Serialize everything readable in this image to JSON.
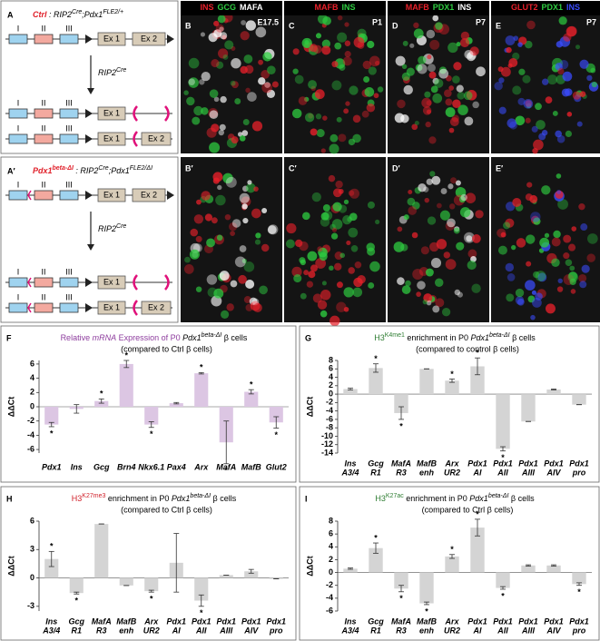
{
  "panels": {
    "A": {
      "letter": "A",
      "genotype_parts": [
        "Ctrl",
        " : RIP2",
        "Cre",
        ";Pdx1",
        "FLE2/+"
      ]
    },
    "A_prime": {
      "letter": "A′",
      "genotype_parts": [
        "Pdx1",
        "beta-ΔI",
        " : RIP2",
        "Cre",
        ";Pdx1",
        "FLE2/ΔI"
      ]
    },
    "cre_parts": [
      "RIP2",
      "Cre"
    ],
    "gene": {
      "regions": [
        "I",
        "II",
        "III"
      ],
      "exons": [
        "Ex 1",
        "Ex 2"
      ]
    },
    "images": [
      {
        "letter": "B",
        "age": "E17.5",
        "stain": [
          {
            "text": "INS",
            "color": "#e8202a"
          },
          {
            "text": "GCG",
            "color": "#2ecc40"
          },
          {
            "text": "MAFA",
            "color": "#ffffff"
          }
        ]
      },
      {
        "letter": "C",
        "age": "P1",
        "stain": [
          {
            "text": "MAFB",
            "color": "#e8202a"
          },
          {
            "text": "INS",
            "color": "#2ecc40"
          }
        ]
      },
      {
        "letter": "D",
        "age": "P7",
        "stain": [
          {
            "text": "MAFB",
            "color": "#e8202a"
          },
          {
            "text": "PDX1",
            "color": "#2ecc40"
          },
          {
            "text": "INS",
            "color": "#ffffff"
          }
        ]
      },
      {
        "letter": "E",
        "age": "P7",
        "stain": [
          {
            "text": "GLUT2",
            "color": "#e8202a"
          },
          {
            "text": "PDX1",
            "color": "#2ecc40"
          },
          {
            "text": "INS",
            "color": "#3a4cff"
          }
        ]
      },
      {
        "letter": "B′"
      },
      {
        "letter": "C′"
      },
      {
        "letter": "D′"
      },
      {
        "letter": "E′"
      }
    ]
  },
  "chart_data": [
    {
      "type": "bar",
      "panel_label": "F",
      "title_parts": [
        "Relative ",
        "mRNA",
        " Expression",
        " of P0 ",
        "Pdx1",
        "beta-ΔI",
        " β cells"
      ],
      "title_color": "#8e3d9e",
      "subtitle": "(compared to Ctrl β cells)",
      "ylabel": "ΔΔCt",
      "color": "#dcc6e3",
      "categories": [
        "Pdx1",
        "Ins",
        "Gcg",
        "Brn4",
        "Nkx6.1",
        "Pax4",
        "Arx",
        "MafA",
        "MafB",
        "Glut2"
      ],
      "values": [
        -2.5,
        -0.3,
        0.8,
        6,
        -2.5,
        0.5,
        4.7,
        -5,
        2.1,
        -2.2
      ],
      "errors": [
        0.3,
        0.6,
        0.3,
        0.5,
        0.4,
        0.1,
        0.1,
        3,
        0.3,
        0.8
      ],
      "significance": [
        "*",
        null,
        "*",
        "*",
        "*",
        null,
        "*",
        "*",
        "*",
        "*"
      ],
      "ylim": [
        -6.5,
        6.5
      ],
      "yticks": [
        -6,
        -4,
        -2,
        0,
        2,
        4,
        6
      ]
    },
    {
      "type": "bar",
      "panel_label": "G",
      "title_parts": [
        "H3",
        "K4me1",
        " enrichment in P0 ",
        "Pdx1",
        "beta-ΔI",
        " β cells"
      ],
      "title_color": "#2e7d32",
      "subtitle": "(compared to control β cells)",
      "ylabel": "ΔΔCt",
      "color": "#d4d4d4",
      "categories": [
        [
          "Ins",
          "A3/4"
        ],
        [
          "Gcg",
          "R1"
        ],
        [
          "MafA",
          "R3"
        ],
        [
          "MafB",
          "enh"
        ],
        [
          "Arx",
          "UR2"
        ],
        [
          "Pdx1",
          "AI"
        ],
        [
          "Pdx1",
          "AII"
        ],
        [
          "Pdx1",
          "AIII"
        ],
        [
          "Pdx1",
          "AIV"
        ],
        [
          "Pdx1",
          "pro"
        ]
      ],
      "values": [
        1.2,
        6.2,
        -4.5,
        6,
        3.2,
        6.6,
        -13,
        -6.5,
        1.1,
        -2.5
      ],
      "errors": [
        0.2,
        1,
        1.5,
        0,
        0.4,
        2,
        0.5,
        0,
        0.1,
        0
      ],
      "significance": [
        null,
        "*",
        "*",
        null,
        "*",
        "*",
        "*",
        null,
        null,
        null
      ],
      "ylim": [
        -14,
        8
      ],
      "yticks": [
        -14,
        -12,
        -10,
        -8,
        -6,
        -4,
        -2,
        0,
        2,
        4,
        6,
        8
      ]
    },
    {
      "type": "bar",
      "panel_label": "H",
      "title_parts": [
        "H3",
        "K27me3",
        " enrichment in P0 ",
        "Pdx1",
        "beta-ΔI",
        " β cells"
      ],
      "title_color": "#d0202a",
      "subtitle": "(compared to Ctrl β cells)",
      "ylabel": "ΔΔCt",
      "color": "#d4d4d4",
      "categories": [
        [
          "Ins",
          "A3/4"
        ],
        [
          "Gcg",
          "R1"
        ],
        [
          "MafA",
          "R3"
        ],
        [
          "MafB",
          "enh"
        ],
        [
          "Arx",
          "UR2"
        ],
        [
          "Pdx1",
          "AI"
        ],
        [
          "Pdx1",
          "AII"
        ],
        [
          "Pdx1",
          "AIII"
        ],
        [
          "Pdx1",
          "AIV"
        ],
        [
          "Pdx1",
          "pro"
        ]
      ],
      "values": [
        2,
        -1.6,
        5.7,
        -0.8,
        -1.4,
        1.6,
        -2.4,
        0.3,
        0.7,
        -0.1
      ],
      "errors": [
        0.8,
        0.1,
        0,
        0,
        0.1,
        3.1,
        0.6,
        0,
        0.2,
        0
      ],
      "significance": [
        "*",
        "*",
        null,
        null,
        "*",
        null,
        "*",
        null,
        null,
        null
      ],
      "ylim": [
        -3.5,
        6
      ],
      "yticks": [
        -3,
        0,
        3,
        6
      ]
    },
    {
      "type": "bar",
      "panel_label": "I",
      "title_parts": [
        "H3",
        "K27ac",
        " enrichment in P0 ",
        "Pdx1",
        "beta-ΔI",
        " β cells"
      ],
      "title_color": "#2e7d32",
      "subtitle": "(compared to Ctrl β cells)",
      "ylabel": "ΔΔCt",
      "color": "#d4d4d4",
      "categories": [
        [
          "Ins",
          "A3/4"
        ],
        [
          "Gcg",
          "R1"
        ],
        [
          "MafA",
          "R3"
        ],
        [
          "MafB",
          "enh"
        ],
        [
          "Arx",
          "UR2"
        ],
        [
          "Pdx1",
          "AI"
        ],
        [
          "Pdx1",
          "AII"
        ],
        [
          "Pdx1",
          "AIII"
        ],
        [
          "Pdx1",
          "AIV"
        ],
        [
          "Pdx1",
          "pro"
        ]
      ],
      "values": [
        0.6,
        3.8,
        -2.5,
        -4.8,
        2.5,
        7,
        -2.4,
        1.1,
        1.1,
        -1.8
      ],
      "errors": [
        0.1,
        0.8,
        0.5,
        0.2,
        0.3,
        1.3,
        0.2,
        0.1,
        0.1,
        0.2
      ],
      "significance": [
        null,
        "*",
        "*",
        "*",
        "*",
        "*",
        "*",
        null,
        null,
        "*"
      ],
      "ylim": [
        -6,
        8
      ],
      "yticks": [
        -6,
        -4,
        -2,
        0,
        2,
        4,
        6,
        8
      ]
    }
  ]
}
